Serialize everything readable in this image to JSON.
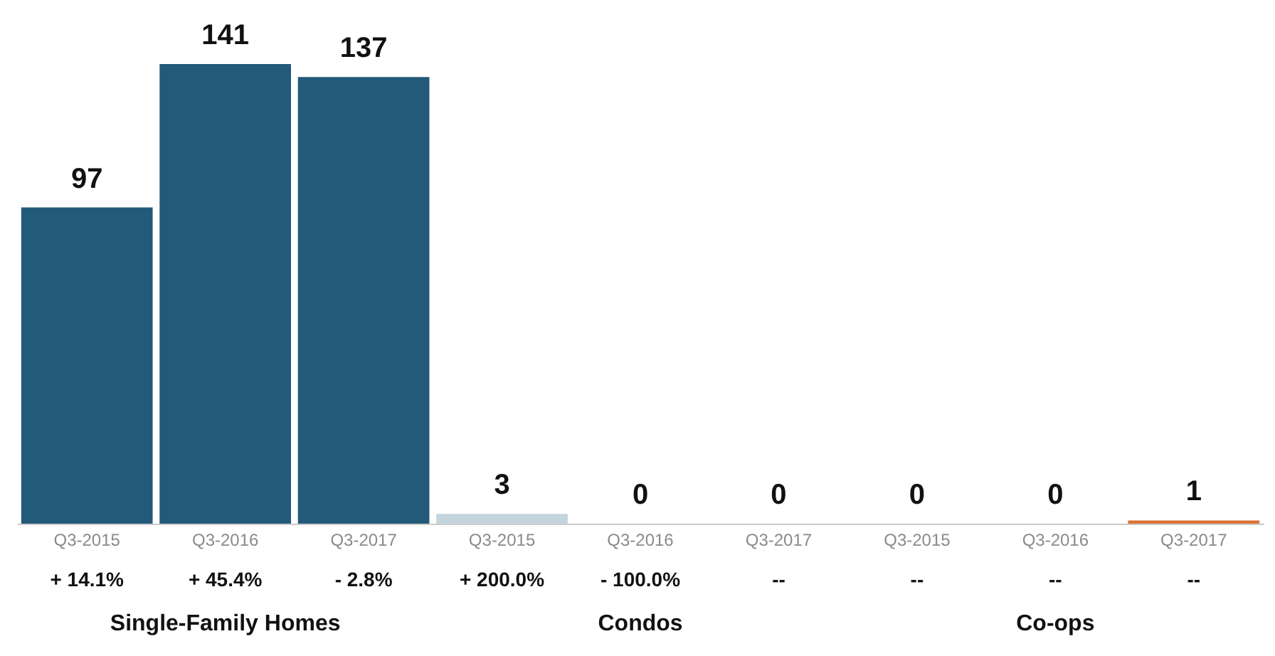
{
  "chart_data": {
    "type": "bar",
    "categories": [
      "Q3-2015",
      "Q3-2016",
      "Q3-2017",
      "Q3-2015",
      "Q3-2016",
      "Q3-2017",
      "Q3-2015",
      "Q3-2016",
      "Q3-2017"
    ],
    "values": [
      97,
      141,
      137,
      3,
      0,
      0,
      0,
      0,
      1
    ],
    "colors": [
      "#235a7a",
      "#235a7a",
      "#235a7a",
      "#c4d4dd",
      "#c4d4dd",
      "#c4d4dd",
      "#dc7436",
      "#dc7436",
      "#dc7436"
    ],
    "data_labels": true,
    "annotations": [
      "+ 14.1%",
      "+ 45.4%",
      "- 2.8%",
      "+ 200.0%",
      "- 100.0%",
      "--",
      "--",
      "--",
      "--",
      "Single-Family Homes",
      "Condos",
      "Co-ops"
    ]
  }
}
